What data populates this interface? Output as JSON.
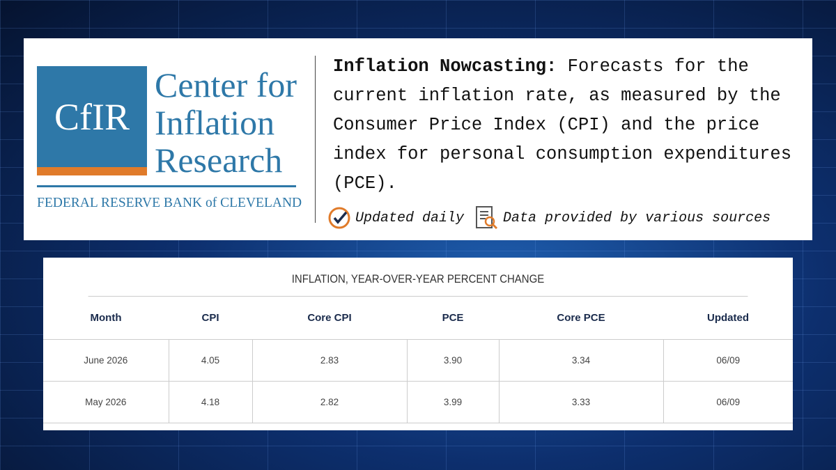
{
  "logo": {
    "monogram": "CfIR",
    "name_lines": [
      "Center for",
      "Inflation",
      "Research"
    ],
    "bank": "FEDERAL RESERVE BANK of CLEVELAND"
  },
  "description": {
    "lead": "Inflation Nowcasting:",
    "text": "Forecasts for the current inflation rate, as measured by the Consumer Price Index (CPI) and the price index for personal consumption expenditures (PCE)."
  },
  "badges": [
    "Updated daily",
    "Data provided by various sources"
  ],
  "table": {
    "title": "INFLATION, YEAR-OVER-YEAR PERCENT CHANGE",
    "columns": [
      "Month",
      "CPI",
      "Core CPI",
      "PCE",
      "Core PCE",
      "Updated"
    ],
    "rows": [
      [
        "June 2026",
        "4.05",
        "2.83",
        "3.90",
        "3.34",
        "06/09"
      ],
      [
        "May 2026",
        "4.18",
        "2.82",
        "3.99",
        "3.33",
        "06/09"
      ]
    ]
  }
}
